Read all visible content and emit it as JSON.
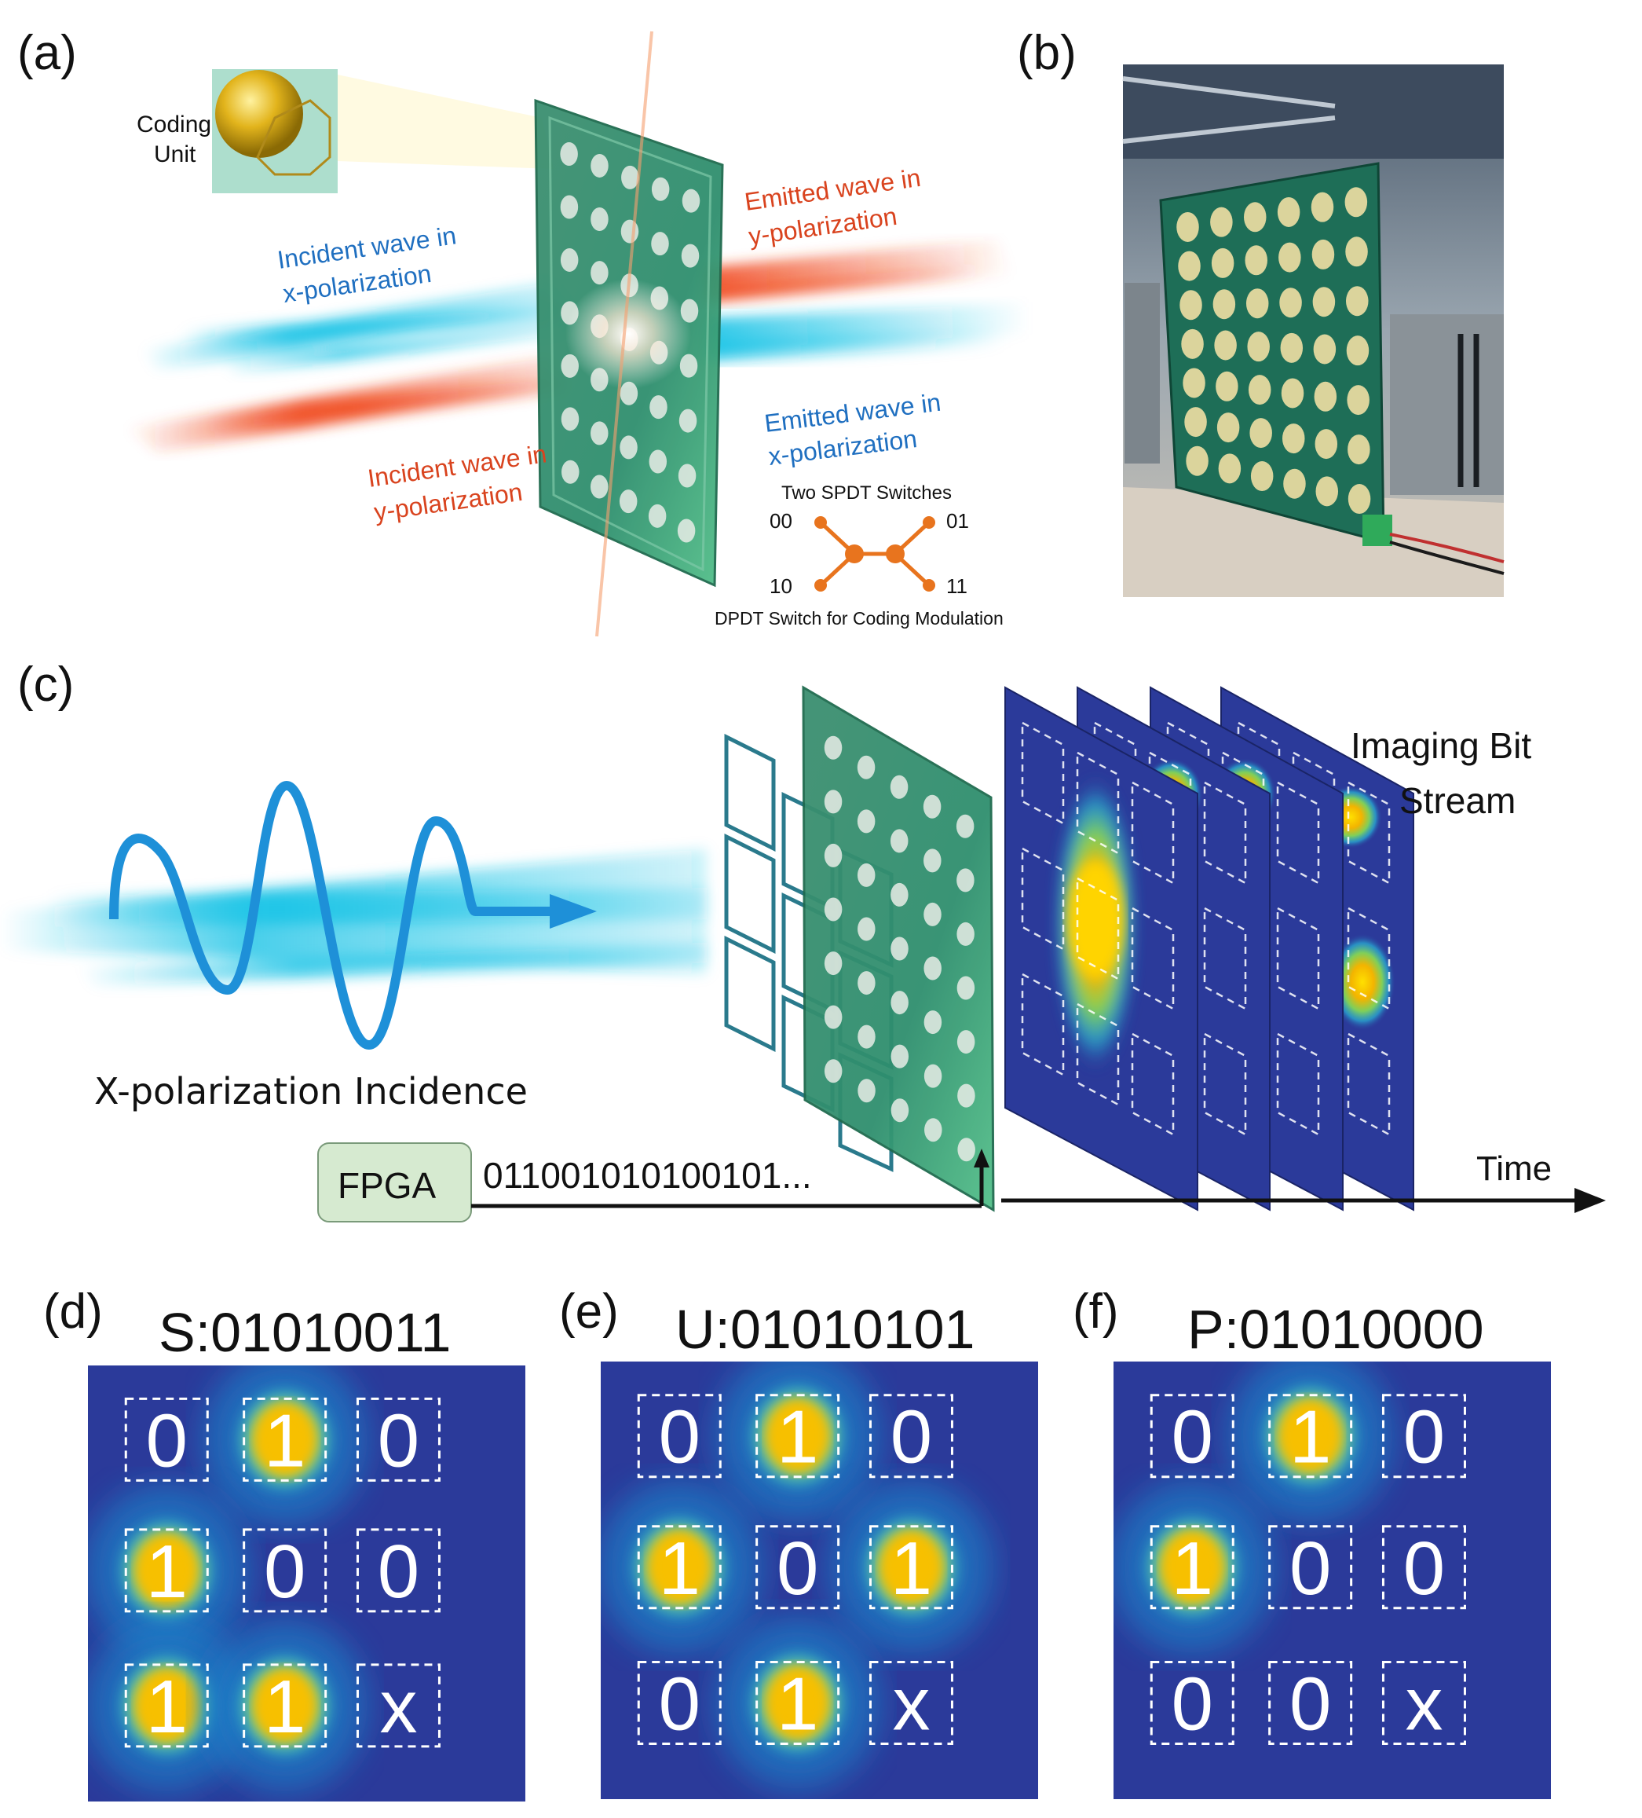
{
  "panels": {
    "a": {
      "label": "(a)",
      "coding_unit": [
        "Coding",
        "Unit"
      ],
      "incident_x": [
        "Incident wave in",
        "x-polarization"
      ],
      "emitted_y": [
        "Emitted wave in",
        "y-polarization"
      ],
      "emitted_x": [
        "Emitted wave in",
        "x-polarization"
      ],
      "incident_y": [
        "Incident wave in",
        "y-polarization"
      ],
      "spdt_title": "Two SPDT Switches",
      "switch_states": [
        "00",
        "01",
        "10",
        "11"
      ],
      "dpdt_caption": "DPDT Switch for Coding Modulation"
    },
    "b": {
      "label": "(b)"
    },
    "c": {
      "label": "(c)",
      "imaging": [
        "Imaging Bit",
        "Stream"
      ],
      "incidence": "X-polarization Incidence",
      "fpga": "FPGA",
      "bitstream": "011001010100101...",
      "time": "Time"
    },
    "d": {
      "label": "(d)",
      "title": "S:01010011",
      "grid": [
        "0",
        "1",
        "0",
        "1",
        "0",
        "0",
        "1",
        "1",
        "x"
      ]
    },
    "e": {
      "label": "(e)",
      "title": "U:01010101",
      "grid": [
        "0",
        "1",
        "0",
        "1",
        "0",
        "1",
        "0",
        "1",
        "x"
      ]
    },
    "f": {
      "label": "(f)",
      "title": "P:01010000",
      "grid": [
        "0",
        "1",
        "0",
        "1",
        "0",
        "0",
        "0",
        "0",
        "x"
      ]
    }
  },
  "colors": {
    "incident_blue": "#19c3e6",
    "label_blue": "#1f6fc0",
    "label_red": "#d9431e",
    "wave_red": "#f04a1f",
    "board_green": "#2f8f6e",
    "heat_bg": "#2b3a9a",
    "switch_orange": "#e8741e",
    "fpga_box": "#d6ead0"
  }
}
